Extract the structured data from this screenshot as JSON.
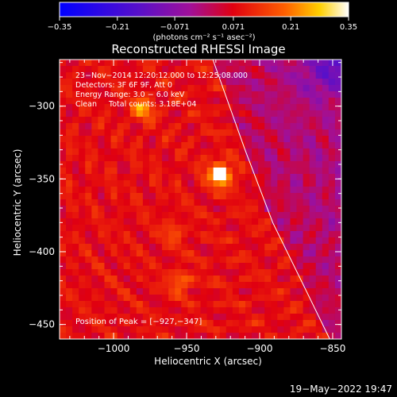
{
  "chart_data": {
    "type": "heatmap",
    "title": "Reconstructed RHESSI Image",
    "xlabel": "Heliocentric X (arcsec)",
    "ylabel": "Heliocentric Y (arcsec)",
    "xlim": [
      -1037,
      -844
    ],
    "ylim": [
      -460,
      -268
    ],
    "x_ticks": [
      -1000,
      -950,
      -900,
      -850
    ],
    "x_tick_labels": [
      "−1000",
      "−950",
      "−900",
      "−850"
    ],
    "y_ticks": [
      -300,
      -350,
      -400,
      -450
    ],
    "y_tick_labels": [
      "−300",
      "−350",
      "−400",
      "−450"
    ],
    "colorbar": {
      "range": [
        -0.35,
        0.35
      ],
      "ticks": [
        -0.35,
        -0.21,
        -0.071,
        0.071,
        0.21,
        0.35
      ],
      "tick_labels": [
        "−0.35",
        "−0.21",
        "−0.071",
        "0.071",
        "0.21",
        "0.35"
      ],
      "label": "(photons cm⁻² s⁻¹ asec⁻²)",
      "colors": [
        "#0000ff",
        "#6a00a8",
        "#ff0000",
        "#ffd000",
        "#ffffff"
      ]
    },
    "annotations": [
      "23−Nov−2014 12:20:12.000 to 12:25:08.000",
      "Detectors: 3F 6F 9F, Att 0",
      "Energy Range: 3.0 − 6.0 keV",
      "Clean     Total counts: 3.18E+04"
    ],
    "peak_label": "Position of Peak = [−927,−347]",
    "sources": [
      {
        "x": -927,
        "y": -347,
        "intensity": 0.35
      },
      {
        "x": -980,
        "y": -302,
        "intensity": 0.17
      },
      {
        "x": -954,
        "y": -421,
        "intensity": 0.12
      },
      {
        "x": -959,
        "y": -387,
        "intensity": 0.08
      }
    ],
    "limb": [
      [
        -932,
        -268
      ],
      [
        -910,
        -330
      ],
      [
        -891,
        -380
      ],
      [
        -869,
        -425
      ],
      [
        -852,
        -460
      ]
    ]
  },
  "footer": {
    "date": "19−May−2022 19:47"
  }
}
